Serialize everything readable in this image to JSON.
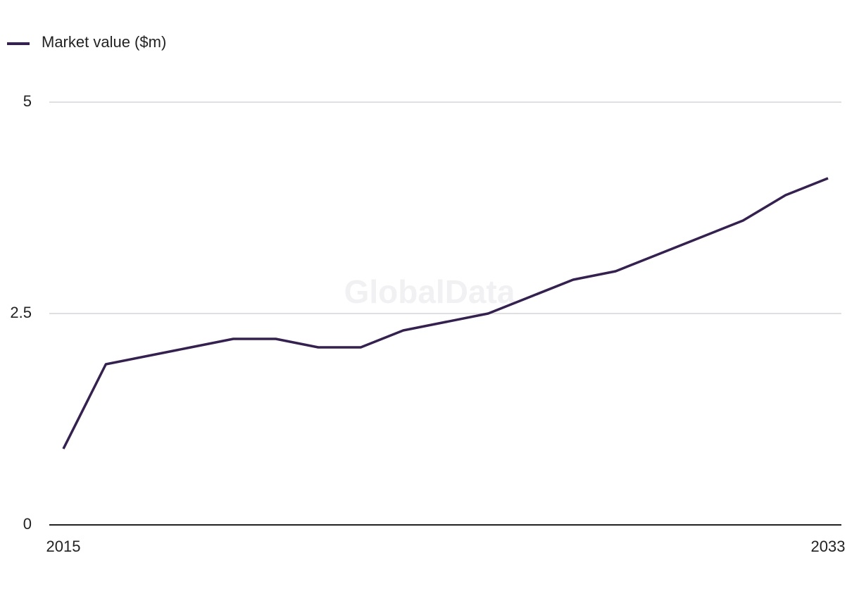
{
  "chart_data": {
    "type": "line",
    "watermark": "GlobalData",
    "x": [
      2015,
      2016,
      2017,
      2018,
      2019,
      2020,
      2021,
      2022,
      2023,
      2024,
      2025,
      2026,
      2027,
      2028,
      2029,
      2030,
      2031,
      2032,
      2033
    ],
    "series": [
      {
        "name": "Market value ($m)",
        "color": "#35214f",
        "values": [
          0.9,
          1.9,
          2.0,
          2.1,
          2.2,
          2.2,
          2.1,
          2.1,
          2.3,
          2.4,
          2.5,
          2.7,
          2.9,
          3.0,
          3.2,
          3.4,
          3.6,
          3.9,
          4.1
        ]
      }
    ],
    "xlim": [
      2015,
      2033
    ],
    "xticks": [
      2015,
      2033
    ],
    "ylim": [
      0,
      5
    ],
    "yticks": [
      0,
      2.5,
      5
    ],
    "grid": true,
    "legend": "top-left"
  }
}
